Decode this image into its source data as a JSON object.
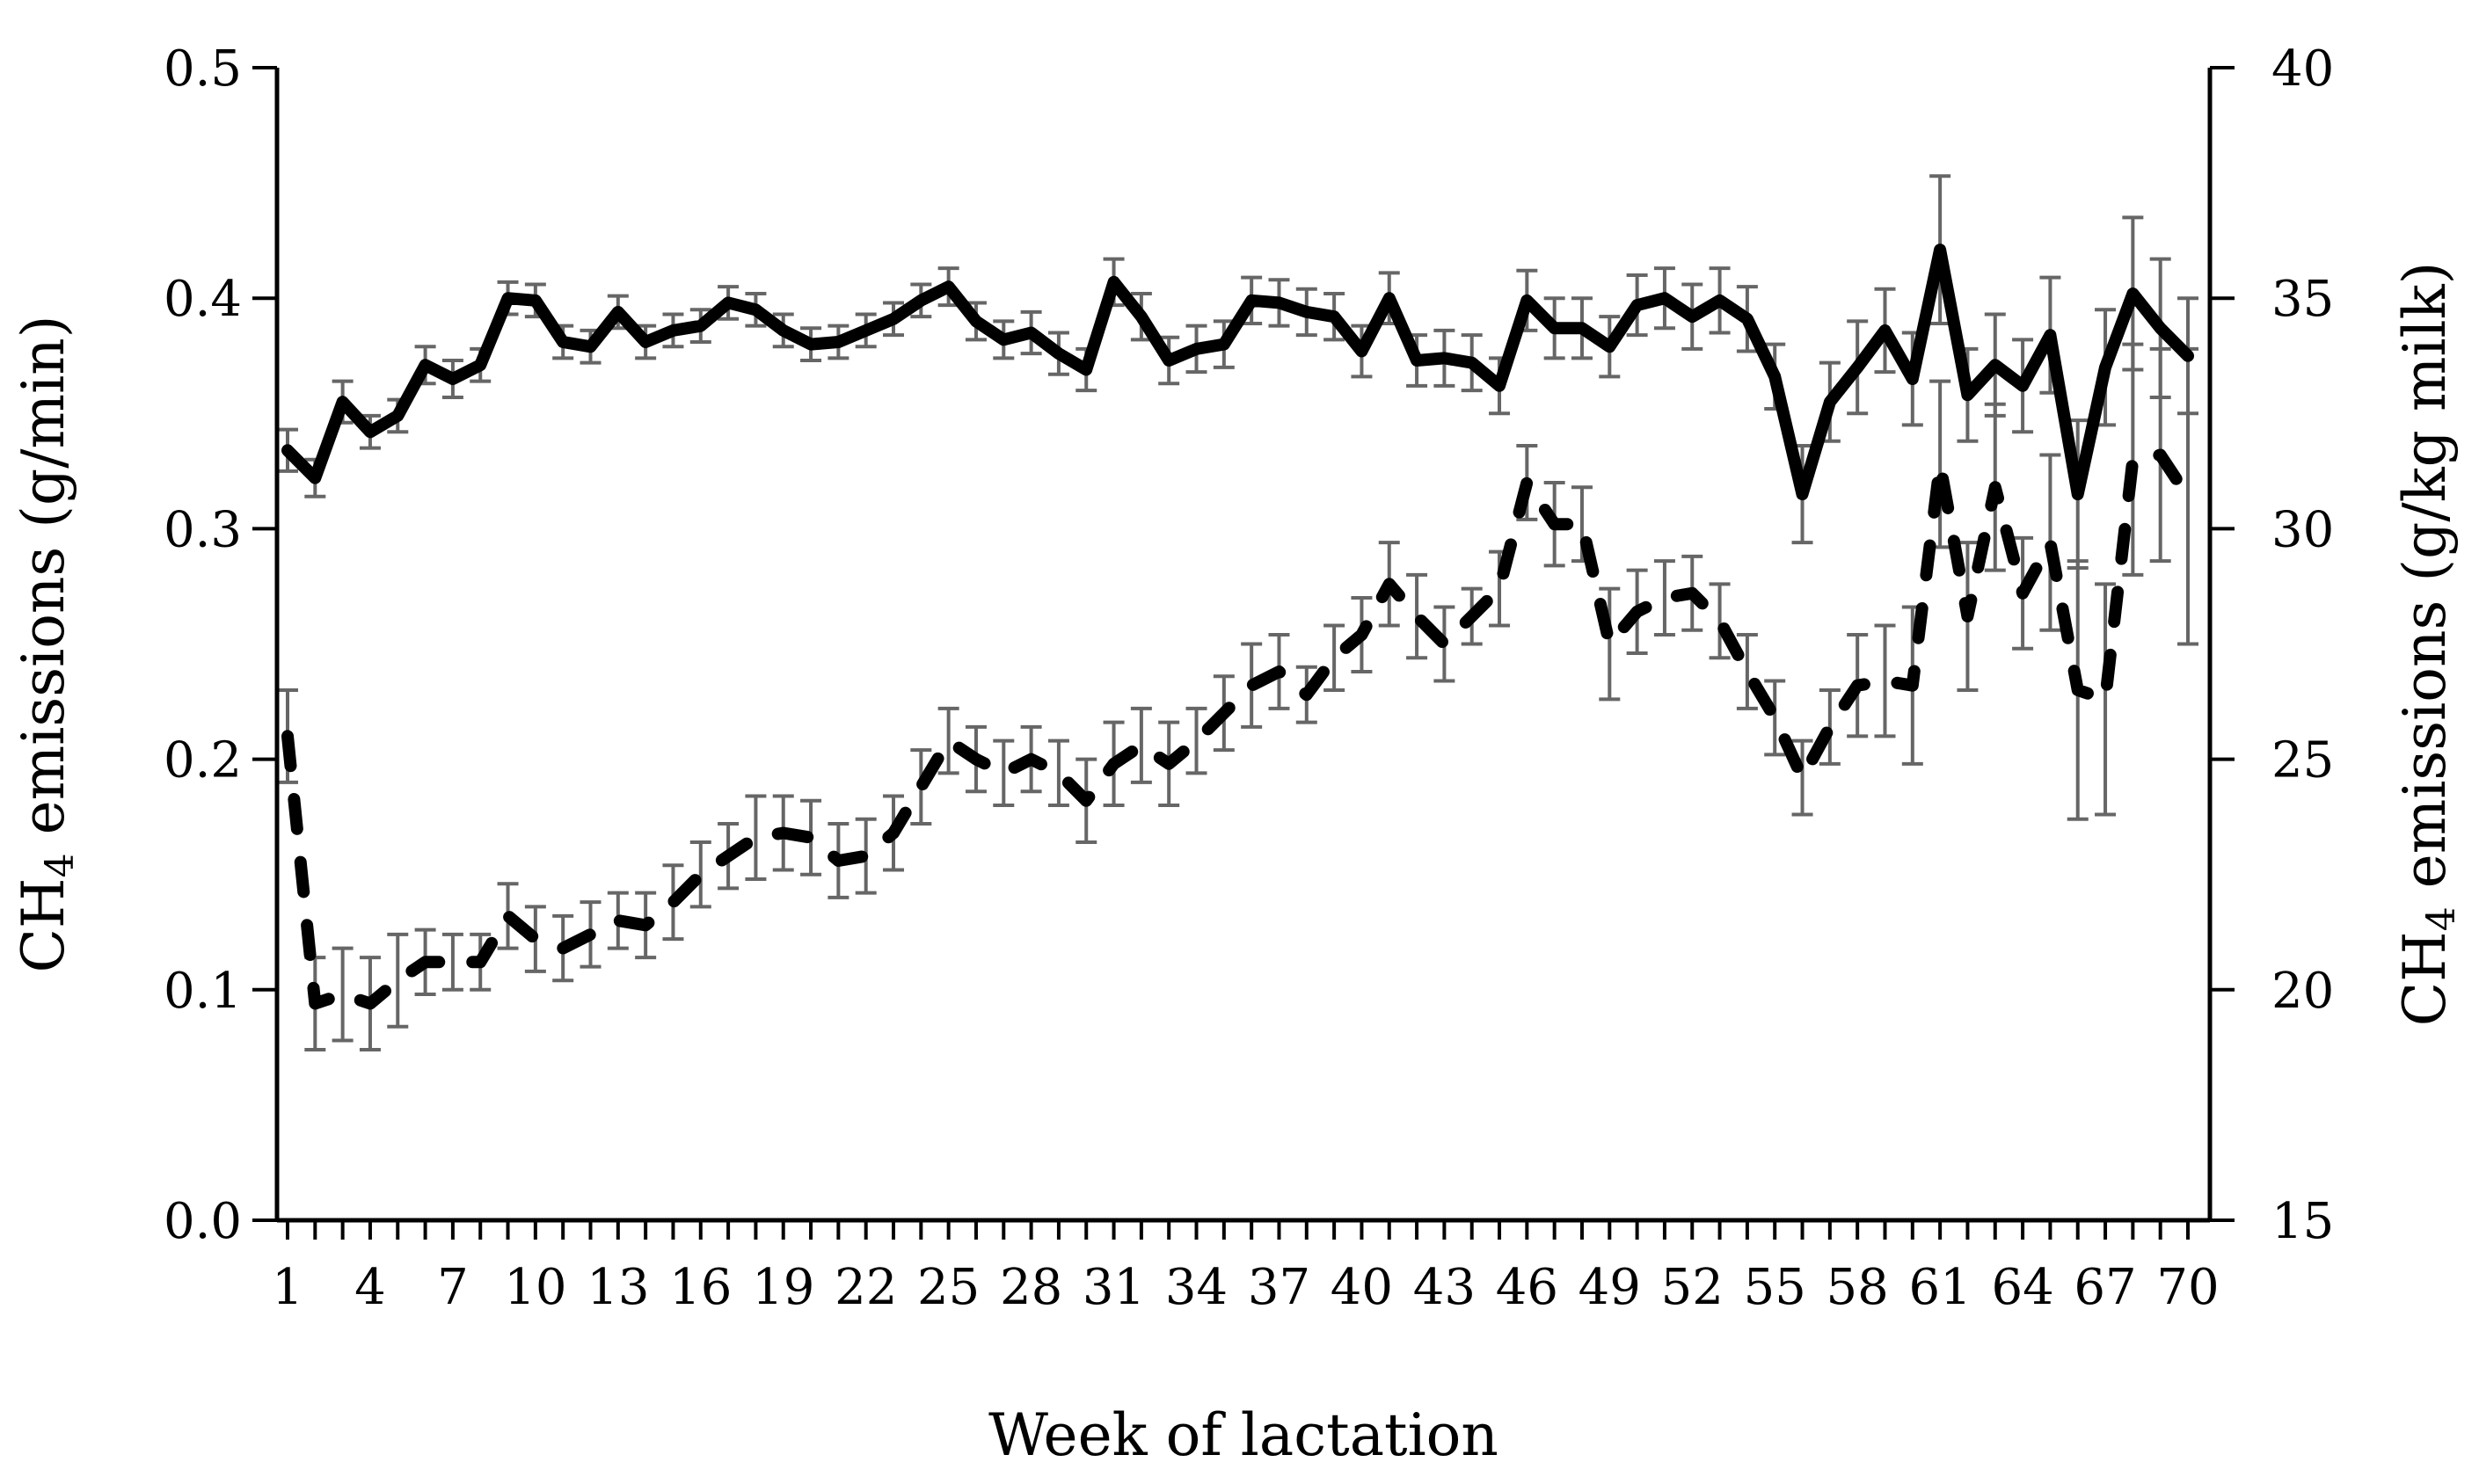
{
  "chart_data": {
    "type": "line",
    "xlabel": "Week of lactation",
    "ylabel_left": {
      "main": "CH",
      "sub": "4",
      "rest": " emissions (g/min)"
    },
    "ylabel_right": {
      "main": "CH",
      "sub": "4",
      "rest": " emissions (g/kg milk)"
    },
    "x_range": [
      1,
      70
    ],
    "x_tick_labels": [
      "1",
      "4",
      "7",
      "10",
      "13",
      "16",
      "19",
      "22",
      "25",
      "28",
      "31",
      "34",
      "37",
      "40",
      "43",
      "46",
      "49",
      "52",
      "55",
      "58",
      "61",
      "64",
      "67",
      "70"
    ],
    "y_left": {
      "range": [
        0.0,
        0.5
      ],
      "tick_labels": [
        "0.0",
        "0.1",
        "0.2",
        "0.3",
        "0.4",
        "0.5"
      ],
      "ticks": [
        0.0,
        0.1,
        0.2,
        0.3,
        0.4,
        0.5
      ]
    },
    "y_right": {
      "range": [
        15,
        40
      ],
      "tick_labels": [
        "15",
        "20",
        "25",
        "30",
        "35",
        "40"
      ],
      "ticks": [
        15,
        20,
        25,
        30,
        35,
        40
      ]
    },
    "grid": false,
    "legend": "none",
    "series": [
      {
        "axis": "left",
        "style": "solid",
        "x": [
          1,
          2,
          3,
          4,
          5,
          6,
          7,
          8,
          9,
          10,
          11,
          12,
          13,
          14,
          15,
          16,
          17,
          18,
          19,
          20,
          21,
          22,
          23,
          24,
          25,
          26,
          27,
          28,
          29,
          30,
          31,
          32,
          33,
          34,
          35,
          36,
          37,
          38,
          39,
          40,
          41,
          42,
          43,
          44,
          45,
          46,
          47,
          48,
          49,
          50,
          51,
          52,
          53,
          54,
          55,
          56,
          57,
          58,
          59,
          60,
          61,
          62,
          63,
          64,
          65,
          66,
          67,
          68,
          69,
          70
        ],
        "y": [
          0.334,
          0.322,
          0.355,
          0.342,
          0.349,
          0.371,
          0.365,
          0.371,
          0.4,
          0.399,
          0.381,
          0.379,
          0.394,
          0.381,
          0.386,
          0.388,
          0.398,
          0.395,
          0.386,
          0.38,
          0.381,
          0.386,
          0.391,
          0.399,
          0.405,
          0.39,
          0.382,
          0.385,
          0.376,
          0.369,
          0.407,
          0.392,
          0.373,
          0.378,
          0.38,
          0.399,
          0.398,
          0.394,
          0.392,
          0.377,
          0.4,
          0.373,
          0.374,
          0.372,
          0.362,
          0.399,
          0.387,
          0.387,
          0.379,
          0.397,
          0.4,
          0.392,
          0.399,
          0.391,
          0.366,
          0.315,
          0.355,
          0.37,
          0.386,
          0.365,
          0.421,
          0.358,
          0.371,
          0.362,
          0.384,
          0.315,
          0.37,
          0.402,
          0.387,
          0.375
        ],
        "error": [
          0.009,
          0.008,
          0.009,
          0.007,
          0.007,
          0.008,
          0.008,
          0.007,
          0.007,
          0.007,
          0.007,
          0.007,
          0.007,
          0.007,
          0.007,
          0.007,
          0.007,
          0.007,
          0.007,
          0.007,
          0.007,
          0.007,
          0.007,
          0.007,
          0.008,
          0.008,
          0.008,
          0.009,
          0.009,
          0.009,
          0.01,
          0.01,
          0.01,
          0.01,
          0.01,
          0.01,
          0.01,
          0.01,
          0.01,
          0.011,
          0.011,
          0.011,
          0.012,
          0.012,
          0.012,
          0.013,
          0.013,
          0.013,
          0.013,
          0.013,
          0.013,
          0.014,
          0.014,
          0.014,
          0.014,
          0.021,
          0.017,
          0.02,
          0.018,
          0.02,
          0.032,
          0.02,
          0.022,
          0.02,
          0.025,
          0.032,
          0.025,
          0.033,
          0.03,
          0.025
        ]
      },
      {
        "axis": "right",
        "style": "dashed",
        "x": [
          1,
          2,
          3,
          4,
          5,
          6,
          7,
          8,
          9,
          10,
          11,
          12,
          13,
          14,
          15,
          16,
          17,
          18,
          19,
          20,
          21,
          22,
          23,
          24,
          25,
          26,
          27,
          28,
          29,
          30,
          31,
          32,
          33,
          34,
          35,
          36,
          37,
          38,
          39,
          40,
          41,
          42,
          43,
          44,
          45,
          46,
          47,
          48,
          49,
          50,
          51,
          52,
          53,
          54,
          55,
          56,
          57,
          58,
          59,
          60,
          61,
          62,
          63,
          64,
          65,
          66,
          67,
          68,
          69,
          70
        ],
        "y": [
          25.5,
          19.7,
          19.9,
          19.7,
          20.2,
          20.6,
          20.6,
          20.6,
          21.6,
          21.1,
          20.9,
          21.2,
          21.5,
          21.4,
          21.9,
          22.5,
          22.9,
          23.3,
          23.4,
          23.3,
          22.8,
          22.9,
          23.4,
          24.4,
          25.4,
          25.0,
          24.7,
          25.0,
          24.7,
          24.1,
          24.9,
          25.3,
          24.9,
          25.4,
          26.0,
          26.6,
          26.9,
          26.4,
          27.2,
          27.7,
          28.8,
          28.1,
          27.5,
          28.1,
          28.7,
          31.0,
          30.1,
          30.1,
          27.5,
          28.2,
          28.5,
          28.6,
          28.0,
          26.9,
          25.9,
          24.6,
          25.7,
          26.6,
          26.7,
          26.6,
          31.4,
          28.1,
          30.9,
          28.6,
          29.7,
          26.5,
          26.3,
          31.5,
          31.6,
          30.7
        ],
        "error": [
          1.0,
          1.0,
          1.0,
          1.0,
          1.0,
          0.7,
          0.6,
          0.6,
          0.7,
          0.7,
          0.7,
          0.7,
          0.6,
          0.7,
          0.8,
          0.7,
          0.7,
          0.9,
          0.8,
          0.8,
          0.8,
          0.8,
          0.8,
          0.8,
          0.7,
          0.7,
          0.7,
          0.7,
          0.7,
          0.9,
          0.9,
          0.8,
          0.9,
          0.7,
          0.8,
          0.9,
          0.8,
          0.6,
          0.7,
          0.8,
          0.9,
          0.9,
          0.8,
          0.6,
          0.8,
          0.8,
          0.9,
          0.8,
          1.2,
          0.9,
          0.8,
          0.8,
          0.8,
          0.8,
          0.8,
          0.8,
          0.8,
          1.1,
          1.2,
          1.7,
          1.8,
          1.6,
          1.8,
          1.2,
          1.9,
          2.8,
          2.5,
          2.5,
          2.3,
          3.2
        ]
      }
    ]
  }
}
